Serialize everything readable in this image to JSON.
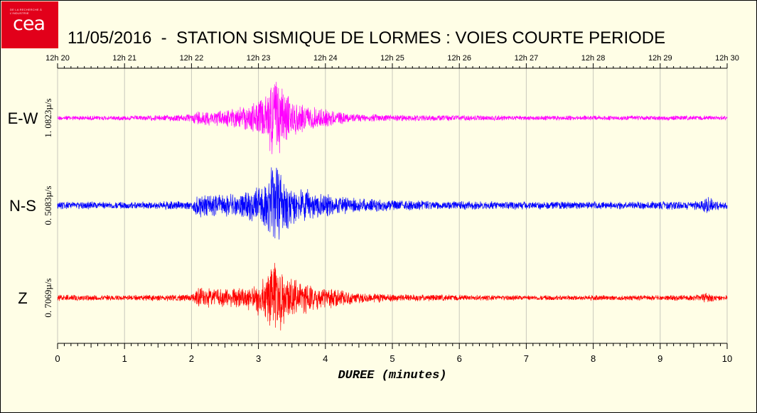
{
  "logo": {
    "text": "cea",
    "tagline": "DE LA RECHERCHE À L'INDUSTRIE",
    "color": "#e2001a"
  },
  "title": "11/05/2016  -  STATION SISMIQUE DE LORMES : VOIES COURTE PERIODE",
  "chart_data": {
    "type": "line",
    "title": "11/05/2016  -  STATION SISMIQUE DE LORMES : VOIES COURTE PERIODE",
    "xlabel": "DUREE (minutes)",
    "xlim": [
      0,
      10
    ],
    "x_ticks": [
      "0",
      "1",
      "2",
      "3",
      "4",
      "5",
      "6",
      "7",
      "8",
      "9",
      "10"
    ],
    "top_axis_ticks": [
      "12h 20",
      "12h 21",
      "12h 22",
      "12h 23",
      "12h 24",
      "12h 25",
      "12h 26",
      "12h 27",
      "12h 28",
      "12h 29",
      "12h 30"
    ],
    "grid": "vertical",
    "series": [
      {
        "name": "E-W",
        "scale_label": "1. 0823µ/s",
        "color": "#ff00ff",
        "envelope": {
          "x": [
            0,
            0.5,
            1,
            1.5,
            2.0,
            2.1,
            2.3,
            2.6,
            2.9,
            3.1,
            3.25,
            3.4,
            3.6,
            3.9,
            4.2,
            4.5,
            5,
            6,
            7,
            8,
            9,
            10
          ],
          "y": [
            0.05,
            0.05,
            0.05,
            0.06,
            0.08,
            0.18,
            0.16,
            0.2,
            0.3,
            0.5,
            1.0,
            0.55,
            0.32,
            0.22,
            0.14,
            0.09,
            0.07,
            0.06,
            0.05,
            0.05,
            0.05,
            0.05
          ]
        }
      },
      {
        "name": "N-S",
        "scale_label": "0. 5083µ/s",
        "color": "#0000ff",
        "envelope": {
          "x": [
            0,
            0.5,
            1,
            1.5,
            2.0,
            2.1,
            2.3,
            2.6,
            2.9,
            3.1,
            3.25,
            3.4,
            3.6,
            3.9,
            4.2,
            4.5,
            5,
            6,
            7,
            8,
            9,
            9.6,
            9.7,
            9.8,
            10
          ],
          "y": [
            0.09,
            0.09,
            0.08,
            0.09,
            0.1,
            0.28,
            0.25,
            0.26,
            0.35,
            0.55,
            1.0,
            0.62,
            0.4,
            0.3,
            0.22,
            0.16,
            0.12,
            0.1,
            0.09,
            0.09,
            0.09,
            0.1,
            0.22,
            0.12,
            0.09
          ]
        }
      },
      {
        "name": "Z",
        "scale_label": "0. 7069µ/s",
        "color": "#ff0000",
        "envelope": {
          "x": [
            0,
            0.5,
            1,
            1.5,
            2.0,
            2.1,
            2.3,
            2.6,
            2.9,
            3.1,
            3.25,
            3.4,
            3.6,
            3.9,
            4.2,
            4.5,
            5,
            6,
            7,
            8,
            9,
            9.6,
            9.7,
            9.8,
            10
          ],
          "y": [
            0.07,
            0.07,
            0.06,
            0.07,
            0.08,
            0.25,
            0.22,
            0.24,
            0.32,
            0.5,
            1.0,
            0.62,
            0.4,
            0.28,
            0.2,
            0.13,
            0.09,
            0.07,
            0.06,
            0.06,
            0.06,
            0.07,
            0.14,
            0.08,
            0.06
          ]
        }
      }
    ]
  }
}
